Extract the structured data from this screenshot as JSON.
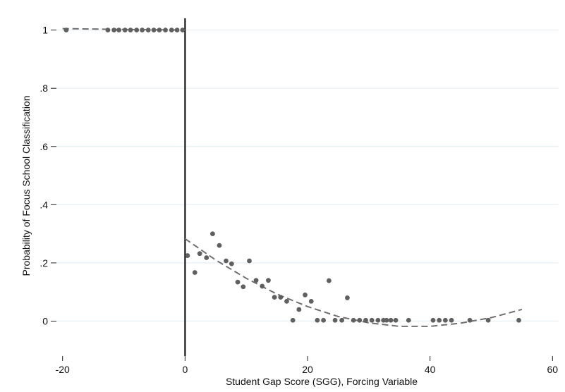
{
  "chart_data": {
    "type": "scatter",
    "xlabel": "Student Gap Score (SGG), Forcing Variable",
    "ylabel": "Probability of Focus School Classification",
    "xlim": [
      -21,
      61
    ],
    "ylim": [
      -0.12,
      1.05
    ],
    "x_ticks": [
      -20,
      0,
      20,
      40,
      60
    ],
    "x_tick_labels": [
      "-20",
      "0",
      "20",
      "40",
      "60"
    ],
    "y_ticks": [
      0,
      0.2,
      0.4,
      0.6,
      0.8,
      1
    ],
    "y_tick_labels": [
      "0",
      ".2",
      ".4",
      ".6",
      ".8",
      "1"
    ],
    "grid": "horizontal",
    "cutoff_x": 0,
    "colors": {
      "points": "#606060",
      "fit": "#707070",
      "grid": "#e6eef2",
      "cutoff": "#000000"
    },
    "series": [
      {
        "kind": "points",
        "x": [
          -19.4,
          -12.6,
          -11.6,
          -10.8,
          -9.8,
          -8.9,
          -7.9,
          -7.0,
          -6.0,
          -5.1,
          -4.2,
          -3.2,
          -2.2,
          -1.3,
          -0.4,
          0.4,
          1.6,
          2.4,
          3.5,
          4.5,
          5.6,
          6.7,
          7.6,
          8.6,
          9.5,
          10.5,
          11.6,
          12.6,
          13.6,
          14.6,
          15.6,
          16.6,
          17.6,
          18.6,
          19.6,
          20.6,
          21.6,
          22.6,
          23.5,
          24.5,
          25.6,
          26.5,
          27.5,
          28.5,
          29.5,
          30.5,
          31.5,
          32.4,
          32.9,
          33.6,
          34.4,
          36.5,
          40.5,
          41.5,
          42.5,
          43.5,
          46.5,
          49.5,
          54.5
        ],
        "y": [
          1,
          1,
          1,
          1,
          1,
          1,
          1,
          1,
          1,
          1,
          1,
          1,
          1,
          1,
          1,
          0.225,
          0.167,
          0.232,
          0.218,
          0.3,
          0.26,
          0.207,
          0.197,
          0.134,
          0.118,
          0.207,
          0.14,
          0.12,
          0.14,
          0.082,
          0.082,
          0.068,
          0.003,
          0.04,
          0.09,
          0.068,
          0.003,
          0.003,
          0.139,
          0.003,
          0.003,
          0.08,
          0.003,
          0.003,
          0.003,
          0.003,
          0.003,
          0.003,
          0.003,
          0.003,
          0.003,
          0.003,
          0.003,
          0.003,
          0.003,
          0.003,
          0.003,
          0.003,
          0.003
        ]
      },
      {
        "kind": "fit-left",
        "x": [
          -20,
          -10,
          0
        ],
        "y": [
          1.005,
          1.002,
          1.0
        ]
      },
      {
        "kind": "fit-right",
        "x": [
          0,
          5,
          10,
          15,
          20,
          25,
          30,
          35,
          40,
          45,
          50,
          55
        ],
        "y": [
          0.283,
          0.21,
          0.147,
          0.093,
          0.05,
          0.016,
          -0.006,
          -0.018,
          -0.018,
          -0.007,
          0.012,
          0.04
        ]
      }
    ]
  }
}
